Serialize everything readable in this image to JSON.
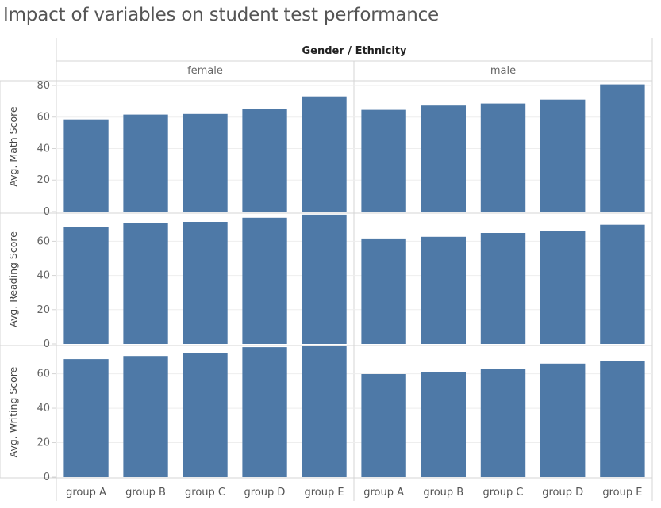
{
  "chart_data": {
    "type": "bar",
    "title": "Impact of variables on student test performance",
    "column_header": "Gender / Ethnicity",
    "columns": [
      "female",
      "male"
    ],
    "categories": [
      "group A",
      "group B",
      "group C",
      "group D",
      "group E"
    ],
    "rows": [
      {
        "ylabel": "Avg. Math Score",
        "ylim": [
          0,
          82
        ],
        "ticks": [
          0,
          20,
          40,
          60,
          80
        ],
        "values": {
          "female": [
            58.5,
            61.6,
            62.0,
            65.2,
            73.1
          ],
          "male": [
            64.6,
            67.3,
            68.6,
            71.1,
            80.7
          ]
        }
      },
      {
        "ylabel": "Avg. Reading Score",
        "ylim": [
          0,
          75
        ],
        "ticks": [
          0,
          20,
          40,
          60
        ],
        "values": {
          "female": [
            68.2,
            70.6,
            71.3,
            73.7,
            75.5
          ],
          "male": [
            61.6,
            62.6,
            64.8,
            65.8,
            69.6
          ]
        }
      },
      {
        "ylabel": "Avg. Writing Score",
        "ylim": [
          0,
          75
        ],
        "ticks": [
          0,
          20,
          40,
          60
        ],
        "values": {
          "female": [
            68.5,
            70.3,
            72.0,
            75.4,
            76.0
          ],
          "male": [
            59.8,
            60.8,
            62.9,
            65.9,
            67.5
          ]
        }
      }
    ],
    "bar_color": "#4e79a7",
    "grid": true,
    "legend": "none"
  }
}
